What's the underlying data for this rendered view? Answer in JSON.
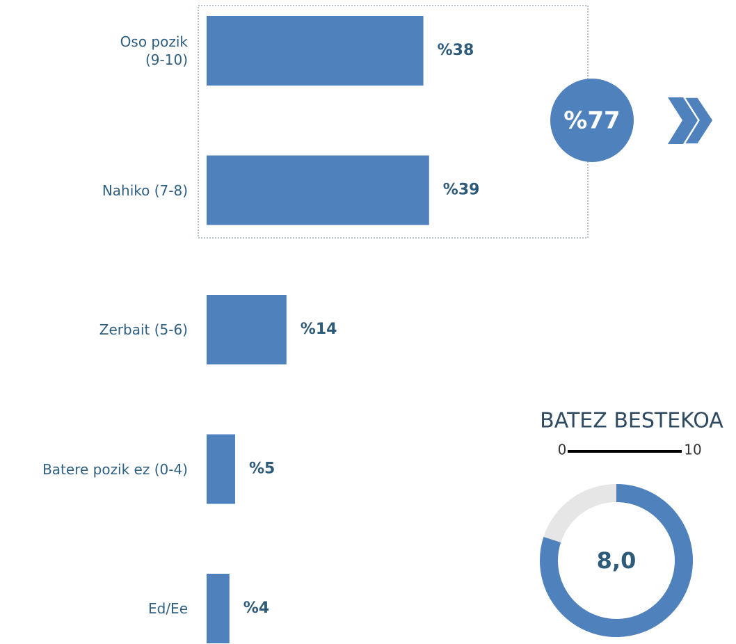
{
  "chart_data": {
    "type": "bar",
    "orientation": "horizontal",
    "categories": [
      "Oso pozik\n(9-10)",
      "Nahiko (7-8)",
      "Zerbait (5-6)",
      "Batere pozik ez (0-4)",
      "Ed/Ee"
    ],
    "values": [
      38,
      39,
      14,
      5,
      4
    ],
    "value_labels": [
      "%38",
      "%39",
      "%14",
      "%5",
      "%4"
    ],
    "color": "#4f81bd",
    "total": {
      "value": 77,
      "label": "%77"
    },
    "average": {
      "title": "BATEZ BESTEKOA",
      "min": 0,
      "max": 10,
      "value": 8,
      "label": "8,0"
    }
  }
}
